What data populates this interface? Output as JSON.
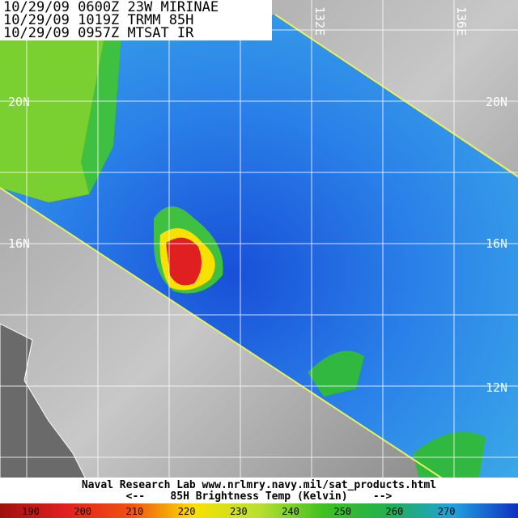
{
  "header": {
    "lines": [
      "10/29/09  0600Z 23W MIRINAE",
      "10/29/09  1019Z TRMM 85H",
      "10/29/09  0957Z MTSAT IR"
    ]
  },
  "grid": {
    "lat_labels": [
      "20N",
      "16N",
      "12N"
    ],
    "lon_labels": [
      "132E",
      "136E"
    ]
  },
  "footer": {
    "credit": "Naval Research Lab  www.nrlmry.navy.mil/sat_products.html",
    "legend_title": "<--    85H Brightness Temp (Kelvin)    -->"
  },
  "colorbar": {
    "ticks": [
      190,
      200,
      210,
      220,
      230,
      240,
      250,
      260,
      270
    ],
    "colors": [
      "#a01010",
      "#e02020",
      "#f05010",
      "#f8e000",
      "#b8e030",
      "#40c020",
      "#20b050",
      "#20a0e0",
      "#1030c0"
    ]
  }
}
